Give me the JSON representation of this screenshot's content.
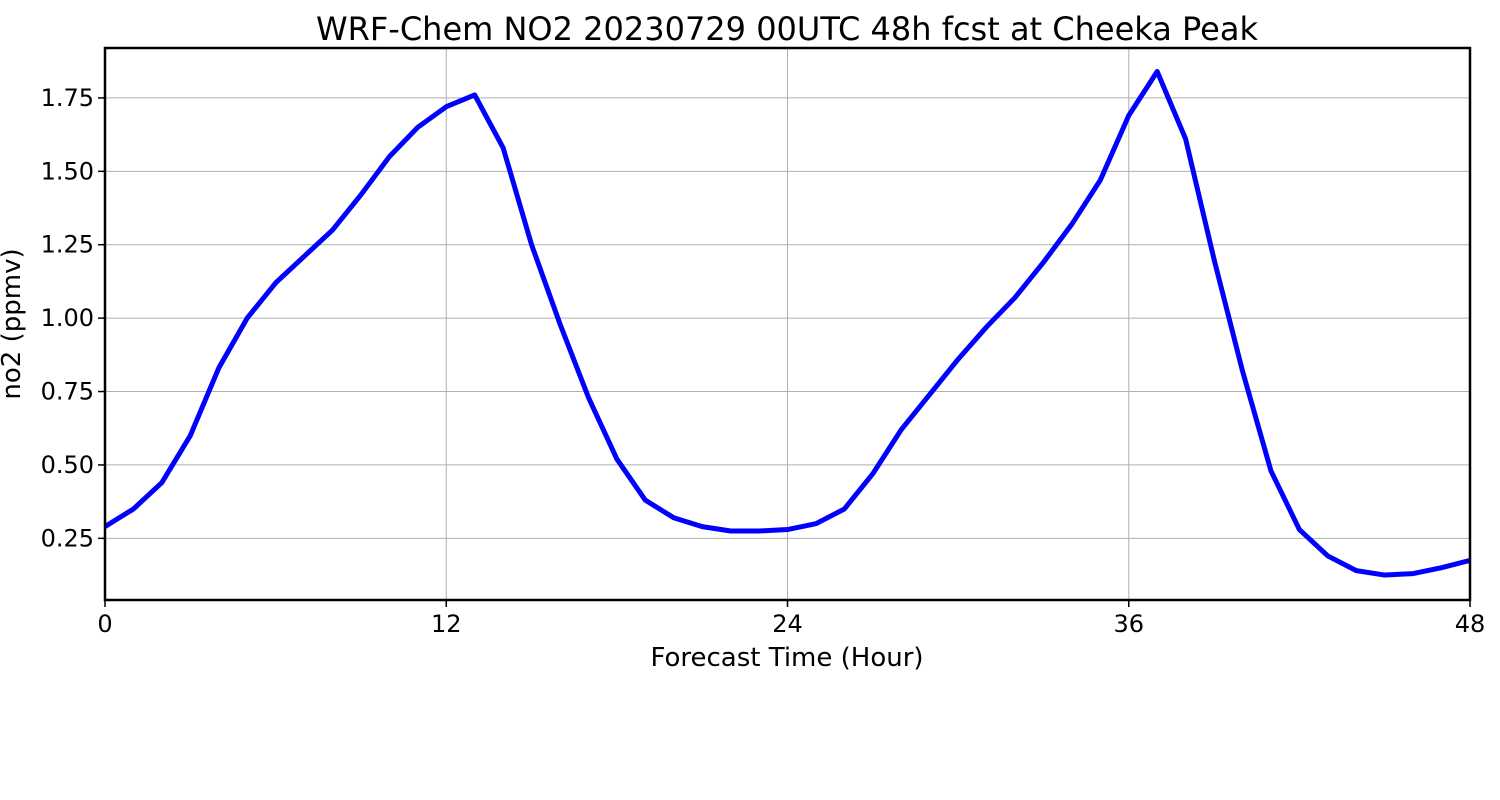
{
  "chart_data": {
    "type": "line",
    "title": "WRF-Chem NO2  20230729 00UTC 48h fcst at Cheeka Peak",
    "xlabel": "Forecast Time (Hour)",
    "ylabel": "no2  (ppmv)",
    "xlim": [
      0,
      48
    ],
    "ylim": [
      0.04,
      1.92
    ],
    "xticks": [
      0,
      12,
      24,
      36,
      48
    ],
    "xtick_labels": [
      "0",
      "12",
      "24",
      "36",
      "48"
    ],
    "yticks": [
      0.25,
      0.5,
      0.75,
      1.0,
      1.25,
      1.5,
      1.75
    ],
    "ytick_labels": [
      "0.25",
      "0.50",
      "0.75",
      "1.00",
      "1.25",
      "1.50",
      "1.75"
    ],
    "grid": true,
    "line_color": "#0000ff",
    "series": [
      {
        "x": [
          0,
          1,
          2,
          3,
          4,
          5,
          6,
          7,
          8,
          9,
          10,
          11,
          12,
          13,
          14,
          15,
          16,
          17,
          18,
          19,
          20,
          21,
          22,
          23,
          24,
          25,
          26,
          27,
          28,
          29,
          30,
          31,
          32,
          33,
          34,
          35,
          36,
          37,
          38,
          39,
          40,
          41,
          42,
          43,
          44,
          45,
          46,
          47,
          48
        ],
        "values": [
          0.29,
          0.35,
          0.44,
          0.6,
          0.83,
          1.0,
          1.12,
          1.21,
          1.3,
          1.42,
          1.55,
          1.65,
          1.72,
          1.76,
          1.58,
          1.25,
          0.98,
          0.73,
          0.52,
          0.38,
          0.32,
          0.29,
          0.275,
          0.275,
          0.28,
          0.3,
          0.35,
          0.47,
          0.62,
          0.74,
          0.86,
          0.97,
          1.07,
          1.19,
          1.32,
          1.47,
          1.69,
          1.84,
          1.61,
          1.2,
          0.82,
          0.48,
          0.28,
          0.19,
          0.14,
          0.125,
          0.13,
          0.15,
          0.175
        ]
      }
    ]
  }
}
